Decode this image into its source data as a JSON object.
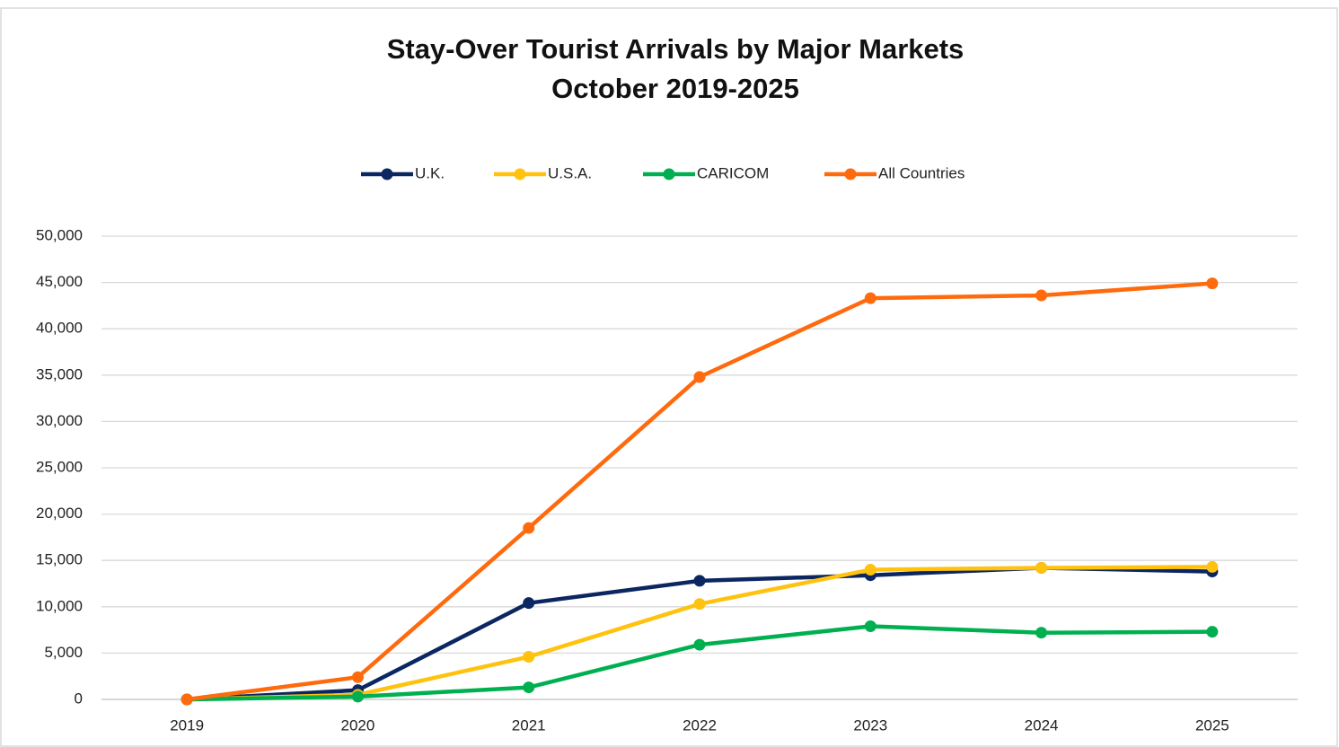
{
  "chart_data": {
    "type": "line",
    "title": "Stay-Over Tourist Arrivals by Major Markets",
    "subtitle": "October 2019-2025",
    "categories": [
      "2019",
      "2020",
      "2021",
      "2022",
      "2023",
      "2024",
      "2025"
    ],
    "series": [
      {
        "name": "U.K.",
        "color": "#0b2661",
        "values": [
          0,
          1000,
          10400,
          12800,
          13400,
          14200,
          13800
        ]
      },
      {
        "name": "U.S.A.",
        "color": "#ffc20e",
        "values": [
          0,
          500,
          4600,
          10300,
          14000,
          14200,
          14300
        ]
      },
      {
        "name": "CARICOM",
        "color": "#00b050",
        "values": [
          0,
          300,
          1300,
          5900,
          7900,
          7200,
          7300
        ]
      },
      {
        "name": "All Countries",
        "color": "#ff6a0d",
        "values": [
          0,
          2400,
          18500,
          34800,
          43300,
          43600,
          44900
        ]
      }
    ],
    "ylim": [
      0,
      50000
    ],
    "yticks": [
      0,
      {
        "value": 5000,
        "label": "5,000"
      },
      {
        "value": 10000,
        "label": "10,000"
      },
      {
        "value": 15000,
        "label": "15,000"
      },
      {
        "value": 20000,
        "label": "20,000"
      },
      {
        "value": 25000,
        "label": "25,000"
      },
      {
        "value": 30000,
        "label": "30,000"
      },
      {
        "value": 35000,
        "label": "35,000"
      },
      {
        "value": 40000,
        "label": "40,000"
      },
      {
        "value": 45000,
        "label": "45,000"
      },
      {
        "value": 50000,
        "label": "50,000"
      }
    ],
    "grid": true,
    "legend": "top"
  }
}
